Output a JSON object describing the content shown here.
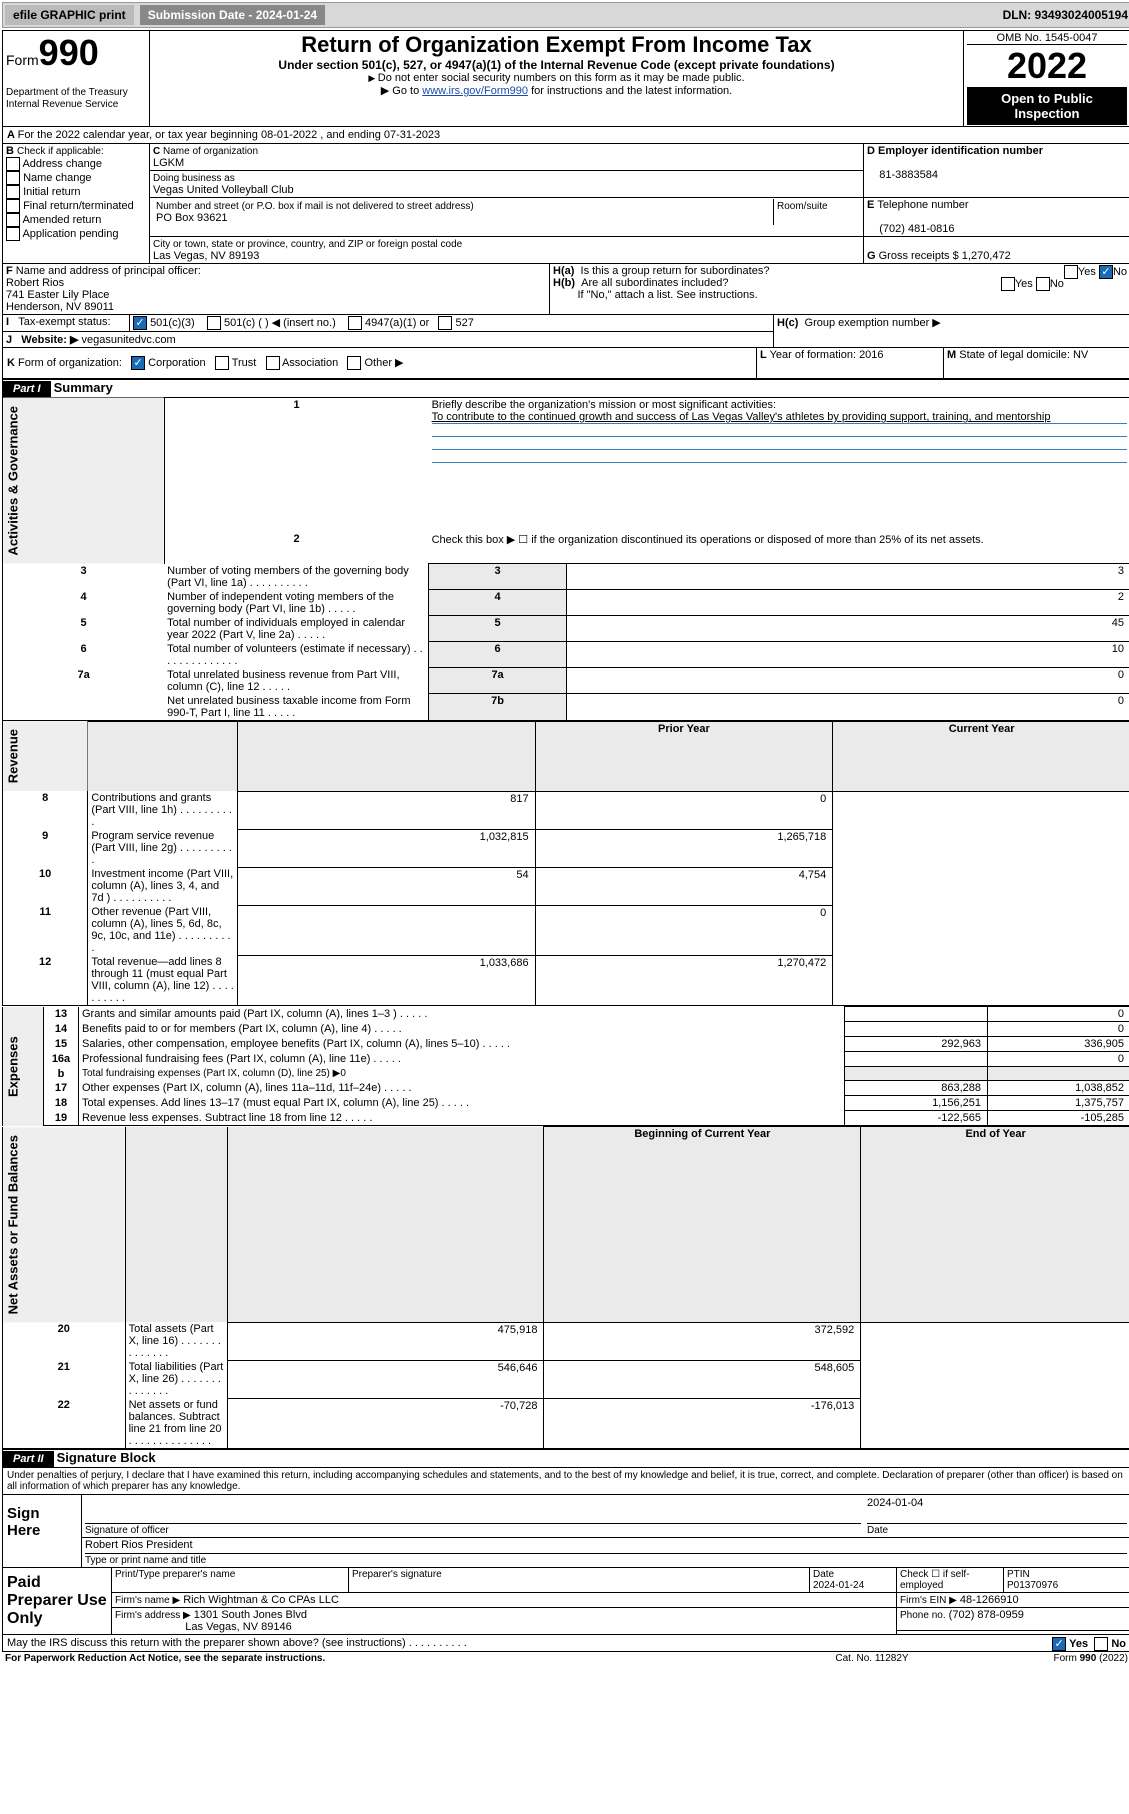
{
  "topbar": {
    "efile": "efile GRAPHIC print",
    "submission_label": "Submission Date - 2024-01-24",
    "dln": "DLN: 93493024005194"
  },
  "header": {
    "form_word": "Form",
    "form_no": "990",
    "title": "Return of Organization Exempt From Income Tax",
    "subtitle": "Under section 501(c), 527, or 4947(a)(1) of the Internal Revenue Code (except private foundations)",
    "instr1": "Do not enter social security numbers on this form as it may be made public.",
    "instr2_pre": "Go to ",
    "instr2_link": "www.irs.gov/Form990",
    "instr2_post": " for instructions and the latest information.",
    "dept": "Department of the Treasury",
    "irs": "Internal Revenue Service",
    "omb": "OMB No. 1545-0047",
    "year": "2022",
    "inspect": "Open to Public Inspection"
  },
  "A": {
    "text": "For the 2022 calendar year, or tax year beginning 08-01-2022    , and ending 07-31-2023"
  },
  "B": {
    "label": "Check if applicable:",
    "items": [
      "Address change",
      "Name change",
      "Initial return",
      "Final return/terminated",
      "Amended return",
      "Application pending"
    ]
  },
  "C": {
    "name_label": "Name of organization",
    "name": "LGKM",
    "dba_label": "Doing business as",
    "dba": "Vegas United Volleyball Club",
    "addr_label": "Number and street (or P.O. box if mail is not delivered to street address)",
    "room_label": "Room/suite",
    "addr": "PO Box 93621",
    "city_label": "City or town, state or province, country, and ZIP or foreign postal code",
    "city": "Las Vegas, NV  89193"
  },
  "D": {
    "label": "Employer identification number",
    "val": "81-3883584"
  },
  "E": {
    "label": "Telephone number",
    "val": "(702) 481-0816"
  },
  "G": {
    "label": "Gross receipts $",
    "val": "1,270,472"
  },
  "F": {
    "label": "Name and address of principal officer:",
    "name": "Robert Rios",
    "addr1": "741 Easter Lily Place",
    "addr2": "Henderson, NV  89011"
  },
  "H": {
    "a": "Is this a group return for subordinates?",
    "b": "Are all subordinates included?",
    "b_note": "If \"No,\" attach a list. See instructions.",
    "c": "Group exemption number ▶"
  },
  "I": {
    "label": "Tax-exempt status:",
    "opts": [
      "501(c)(3)",
      "501(c) (   ) ◀ (insert no.)",
      "4947(a)(1) or",
      "527"
    ]
  },
  "J": {
    "label": "Website: ▶",
    "val": "vegasunitedvc.com"
  },
  "K": {
    "label": "Form of organization:",
    "opts": [
      "Corporation",
      "Trust",
      "Association",
      "Other ▶"
    ]
  },
  "L": {
    "label": "Year of formation:",
    "val": "2016"
  },
  "M": {
    "label": "State of legal domicile:",
    "val": "NV"
  },
  "part1": {
    "label": "Part I",
    "title": "Summary",
    "l1": "Briefly describe the organization's mission or most significant activities:",
    "l1v": "To contribute to the continued growth and success of Las Vegas Valley's athletes by providing support, training, and mentorship",
    "l2": "Check this box ▶ ☐  if the organization discontinued its operations or disposed of more than 25% of its net assets.",
    "lines": [
      {
        "n": "3",
        "t": "Number of voting members of the governing body (Part VI, line 1a)",
        "box": "3",
        "v": "3",
        "dots": "dots"
      },
      {
        "n": "4",
        "t": "Number of independent voting members of the governing body (Part VI, line 1b)",
        "box": "4",
        "v": "2",
        "dots": "dots-s"
      },
      {
        "n": "5",
        "t": "Total number of individuals employed in calendar year 2022 (Part V, line 2a)",
        "box": "5",
        "v": "45",
        "dots": "dots-s"
      },
      {
        "n": "6",
        "t": "Total number of volunteers (estimate if necessary)",
        "box": "6",
        "v": "10",
        "dots": "dots-l"
      },
      {
        "n": "7a",
        "t": "Total unrelated business revenue from Part VIII, column (C), line 12",
        "box": "7a",
        "v": "0",
        "dots": "dots-s"
      },
      {
        "n": "",
        "t": "Net unrelated business taxable income from Form 990-T, Part I, line 11",
        "box": "7b",
        "v": "0",
        "dots": "dots-s"
      }
    ],
    "col_prior": "Prior Year",
    "col_curr": "Current Year",
    "rev": [
      {
        "n": "8",
        "t": "Contributions and grants (Part VIII, line 1h)",
        "p": "817",
        "c": "0"
      },
      {
        "n": "9",
        "t": "Program service revenue (Part VIII, line 2g)",
        "p": "1,032,815",
        "c": "1,265,718"
      },
      {
        "n": "10",
        "t": "Investment income (Part VIII, column (A), lines 3, 4, and 7d )",
        "p": "54",
        "c": "4,754"
      },
      {
        "n": "11",
        "t": "Other revenue (Part VIII, column (A), lines 5, 6d, 8c, 9c, 10c, and 11e)",
        "p": "",
        "c": "0"
      },
      {
        "n": "12",
        "t": "Total revenue—add lines 8 through 11 (must equal Part VIII, column (A), line 12)",
        "p": "1,033,686",
        "c": "1,270,472"
      }
    ],
    "exp": [
      {
        "n": "13",
        "t": "Grants and similar amounts paid (Part IX, column (A), lines 1–3 )",
        "p": "",
        "c": "0"
      },
      {
        "n": "14",
        "t": "Benefits paid to or for members (Part IX, column (A), line 4)",
        "p": "",
        "c": "0"
      },
      {
        "n": "15",
        "t": "Salaries, other compensation, employee benefits (Part IX, column (A), lines 5–10)",
        "p": "292,963",
        "c": "336,905"
      },
      {
        "n": "16a",
        "t": "Professional fundraising fees (Part IX, column (A), line 11e)",
        "p": "",
        "c": "0"
      },
      {
        "n": "b",
        "t": "Total fundraising expenses (Part IX, column (D), line 25) ▶0",
        "p": null,
        "c": null
      },
      {
        "n": "17",
        "t": "Other expenses (Part IX, column (A), lines 11a–11d, 11f–24e)",
        "p": "863,288",
        "c": "1,038,852"
      },
      {
        "n": "18",
        "t": "Total expenses. Add lines 13–17 (must equal Part IX, column (A), line 25)",
        "p": "1,156,251",
        "c": "1,375,757"
      },
      {
        "n": "19",
        "t": "Revenue less expenses. Subtract line 18 from line 12",
        "p": "-122,565",
        "c": "-105,285"
      }
    ],
    "col_beg": "Beginning of Current Year",
    "col_end": "End of Year",
    "net": [
      {
        "n": "20",
        "t": "Total assets (Part X, line 16)",
        "p": "475,918",
        "c": "372,592"
      },
      {
        "n": "21",
        "t": "Total liabilities (Part X, line 26)",
        "p": "546,646",
        "c": "548,605"
      },
      {
        "n": "22",
        "t": "Net assets or fund balances. Subtract line 21 from line 20",
        "p": "-70,728",
        "c": "-176,013"
      }
    ],
    "vlabels": {
      "ag": "Activities & Governance",
      "rev": "Revenue",
      "exp": "Expenses",
      "net": "Net Assets or Fund Balances"
    }
  },
  "part2": {
    "label": "Part II",
    "title": "Signature Block",
    "decl": "Under penalties of perjury, I declare that I have examined this return, including accompanying schedules and statements, and to the best of my knowledge and belief, it is true, correct, and complete. Declaration of preparer (other than officer) is based on all information of which preparer has any knowledge.",
    "sign_here": "Sign Here",
    "sig_officer": "Signature of officer",
    "sig_date": "Date",
    "sig_date_v": "2024-01-04",
    "officer": "Robert Rios  President",
    "type_name": "Type or print name and title",
    "paid": "Paid Preparer Use Only",
    "pp_name": "Print/Type preparer's name",
    "pp_sig": "Preparer's signature",
    "pp_date": "Date",
    "pp_date_v": "2024-01-24",
    "pp_check": "Check ☐ if self-employed",
    "pp_ptin_l": "PTIN",
    "pp_ptin": "P01370976",
    "firm_name_l": "Firm's name    ▶",
    "firm_name": "Rich Wightman & Co CPAs LLC",
    "firm_ein_l": "Firm's EIN ▶",
    "firm_ein": "48-1266910",
    "firm_addr_l": "Firm's address ▶",
    "firm_addr1": "1301 South Jones Blvd",
    "firm_addr2": "Las Vegas, NV  89146",
    "firm_phone_l": "Phone no.",
    "firm_phone": "(702) 878-0959",
    "discuss": "May the IRS discuss this return with the preparer shown above? (see instructions)",
    "yes": "Yes",
    "no": "No"
  },
  "footer": {
    "pra": "For Paperwork Reduction Act Notice, see the separate instructions.",
    "cat": "Cat. No. 11282Y",
    "form": "Form 990 (2022)"
  }
}
